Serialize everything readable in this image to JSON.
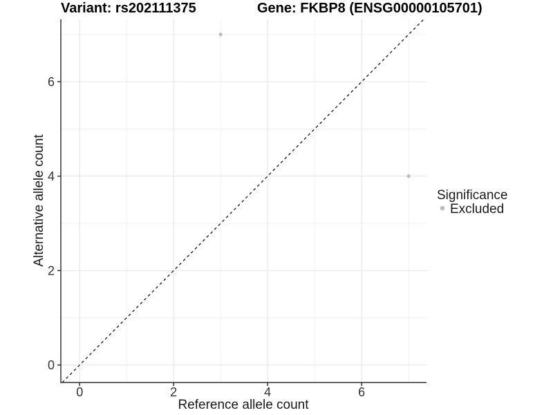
{
  "titles": {
    "variant": "Variant: rs202111375",
    "gene": "Gene: FKBP8 (ENSG00000105701)"
  },
  "axes": {
    "x_label": "Reference allele count",
    "y_label": "Alternative allele count",
    "x_tick_labels": [
      "0",
      "2",
      "4",
      "6"
    ],
    "y_tick_labels": [
      "0",
      "2",
      "4",
      "6"
    ]
  },
  "legend": {
    "title": "Significance",
    "items": [
      {
        "label": "Excluded",
        "color": "#bdbdbd"
      }
    ]
  },
  "style": {
    "background": "#ffffff",
    "panel_background": "#ffffff",
    "grid_major_color": "#e4e4e4",
    "grid_minor_color": "#f0f0f0",
    "axis_line_color": "#333333",
    "tick_mark_color": "#333333",
    "tick_label_color": "#333333",
    "title_color": "#000000",
    "point_color": "#bdbdbd",
    "identity_line_color": "#000000"
  },
  "chart_data": {
    "type": "scatter",
    "title": "Variant: rs202111375   Gene: FKBP8 (ENSG00000105701)",
    "xlabel": "Reference allele count",
    "ylabel": "Alternative allele count",
    "xlim": [
      -0.4,
      7.38
    ],
    "ylim": [
      -0.37,
      7.32
    ],
    "x_major_ticks": [
      0,
      2,
      4,
      6
    ],
    "y_major_ticks": [
      0,
      2,
      4,
      6
    ],
    "x_minor_gridlines": [
      1,
      3,
      5,
      7
    ],
    "y_minor_gridlines": [
      1,
      3,
      5,
      7
    ],
    "grid": true,
    "legend_position": "right",
    "series": [
      {
        "name": "Excluded",
        "color": "#bdbdbd",
        "points": [
          {
            "x": 3,
            "y": 7
          },
          {
            "x": 7,
            "y": 4
          }
        ]
      }
    ],
    "annotations": [
      {
        "type": "identity-line",
        "equation": "y = x",
        "style": "dashed",
        "color": "#000000"
      }
    ]
  }
}
